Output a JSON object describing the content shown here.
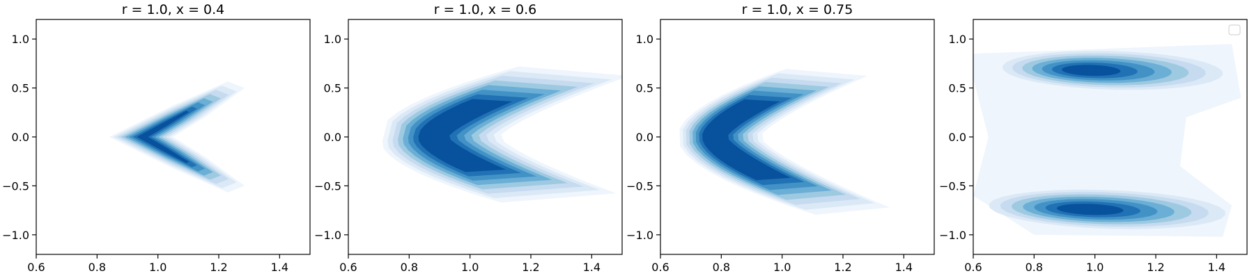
{
  "chart_data": [
    {
      "type": "contour",
      "title": "r = 1.0, x = 0.4",
      "xlim": [
        0.6,
        1.5
      ],
      "ylim": [
        -1.2,
        1.2
      ],
      "xticks": [
        "0.6",
        "0.8",
        "1.0",
        "1.2",
        "1.4"
      ],
      "yticks": [
        "1.0",
        "0.5",
        "0.0",
        "−0.5",
        "−1.0"
      ],
      "colormap": "Blues",
      "shape": "chevron",
      "density": {
        "vertex": [
          0.95,
          0.0
        ],
        "upper_tip": [
          1.23,
          0.5
        ],
        "lower_tip": [
          1.23,
          -0.5
        ],
        "peak_along_arms": [
          1.1,
          0.3
        ]
      }
    },
    {
      "type": "contour",
      "title": "r = 1.0, x = 0.6",
      "xlim": [
        0.6,
        1.5
      ],
      "ylim": [
        -1.2,
        1.2
      ],
      "xticks": [
        "0.6",
        "0.8",
        "1.0",
        "1.2",
        "1.4"
      ],
      "yticks": [
        "1.0",
        "0.5",
        "0.0",
        "−0.5",
        "−1.0"
      ],
      "colormap": "Blues",
      "shape": "crescent",
      "density": {
        "vertex": [
          0.85,
          0.0
        ],
        "upper_tip": [
          1.3,
          0.65
        ],
        "lower_tip": [
          1.3,
          -0.6
        ],
        "peak": [
          0.88,
          0.0
        ]
      }
    },
    {
      "type": "contour",
      "title": "r = 1.0, x = 0.75",
      "xlim": [
        0.6,
        1.5
      ],
      "ylim": [
        -1.2,
        1.2
      ],
      "xticks": [
        "0.6",
        "0.8",
        "1.0",
        "1.2",
        "1.4"
      ],
      "yticks": [
        "1.0",
        "0.5",
        "0.0",
        "−0.5",
        "−1.0"
      ],
      "colormap": "Blues",
      "shape": "open-crescent",
      "density": {
        "vertex": [
          0.75,
          0.0
        ],
        "upper_tip": [
          1.2,
          0.65
        ],
        "lower_tip": [
          1.25,
          -0.75
        ],
        "peak": [
          0.8,
          0.38
        ]
      }
    },
    {
      "type": "contour",
      "title": "",
      "xlim": [
        0.6,
        1.5
      ],
      "ylim": [
        -1.2,
        1.2
      ],
      "xticks": [
        "0.6",
        "0.8",
        "1.0",
        "1.2",
        "1.4"
      ],
      "yticks": [
        "1.0",
        "0.5",
        "0.0",
        "−0.5",
        "−1.0"
      ],
      "colormap": "Blues",
      "shape": "two-lobes",
      "legend": "top-right",
      "density": {
        "upper_peak": [
          0.97,
          0.66
        ],
        "lower_peak": [
          0.97,
          -0.72
        ]
      }
    }
  ]
}
